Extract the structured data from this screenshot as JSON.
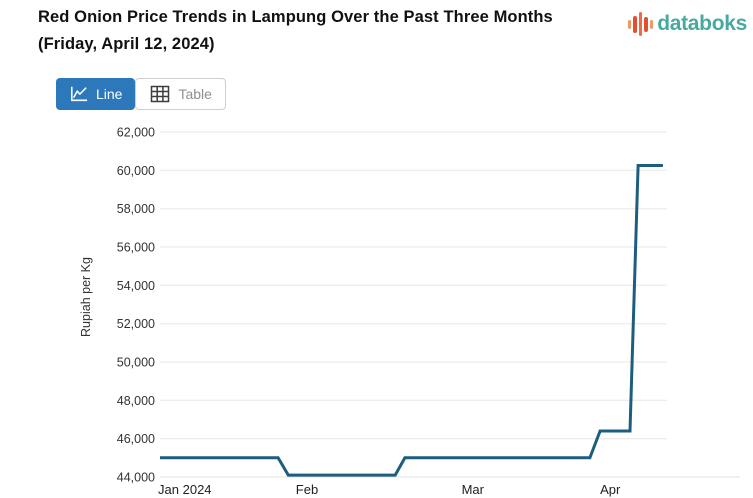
{
  "header": {
    "title": "Red Onion Price Trends in Lampung Over the Past Three Months (Friday, April 12, 2024)",
    "brand": "databoks"
  },
  "toolbar": {
    "line_label": "Line",
    "table_label": "Table"
  },
  "colors": {
    "line": "#1d5d7d",
    "active_button_bg": "#2d78ba",
    "active_button_text": "#ffffff",
    "inactive_button_text": "#8f8f8f",
    "brand_teal": "#48a9a1",
    "brand_bar_colors": [
      "#f09a63",
      "#e4502f",
      "#ef6a45",
      "#e4502f",
      "#f09a63"
    ],
    "grid": "#e7e7e7",
    "baseline": "#e0e0e0",
    "tick_text": "#333333"
  },
  "chart_data": {
    "type": "line",
    "title": "Red Onion Price Trends in Lampung Over the Past Three Months (Friday, April 12, 2024)",
    "xlabel": "",
    "ylabel": "Rupiah per Kg",
    "unit": "Rupiah per Kg",
    "ylim": [
      44000,
      62000
    ],
    "y_ticks": [
      44000,
      46000,
      48000,
      50000,
      52000,
      54000,
      56000,
      58000,
      60000,
      62000
    ],
    "x_ticks": [
      {
        "label": "Jan 2024",
        "pos": 0.049
      },
      {
        "label": "Feb",
        "pos": 0.29
      },
      {
        "label": "Mar",
        "pos": 0.617
      },
      {
        "label": "Apr",
        "pos": 0.888
      }
    ],
    "grid": "horizontal",
    "legend": "none",
    "series": [
      {
        "name": "Red onion price (Rupiah per Kg)",
        "points": [
          {
            "x": 0.0,
            "date": "Jan 12",
            "value": 45000
          },
          {
            "x": 0.233,
            "date": "Feb 1",
            "value": 45000
          },
          {
            "x": 0.253,
            "date": "Feb 3",
            "value": 44100
          },
          {
            "x": 0.464,
            "date": "Feb 22",
            "value": 44100
          },
          {
            "x": 0.483,
            "date": "Feb 24",
            "value": 45000
          },
          {
            "x": 0.848,
            "date": "Apr 2",
            "value": 45000
          },
          {
            "x": 0.868,
            "date": "Apr 4",
            "value": 46400
          },
          {
            "x": 0.927,
            "date": "Apr 9",
            "value": 46400
          },
          {
            "x": 0.943,
            "date": "Apr 10",
            "value": 60250
          },
          {
            "x": 0.992,
            "date": "Apr 12",
            "value": 60250
          }
        ]
      }
    ]
  }
}
